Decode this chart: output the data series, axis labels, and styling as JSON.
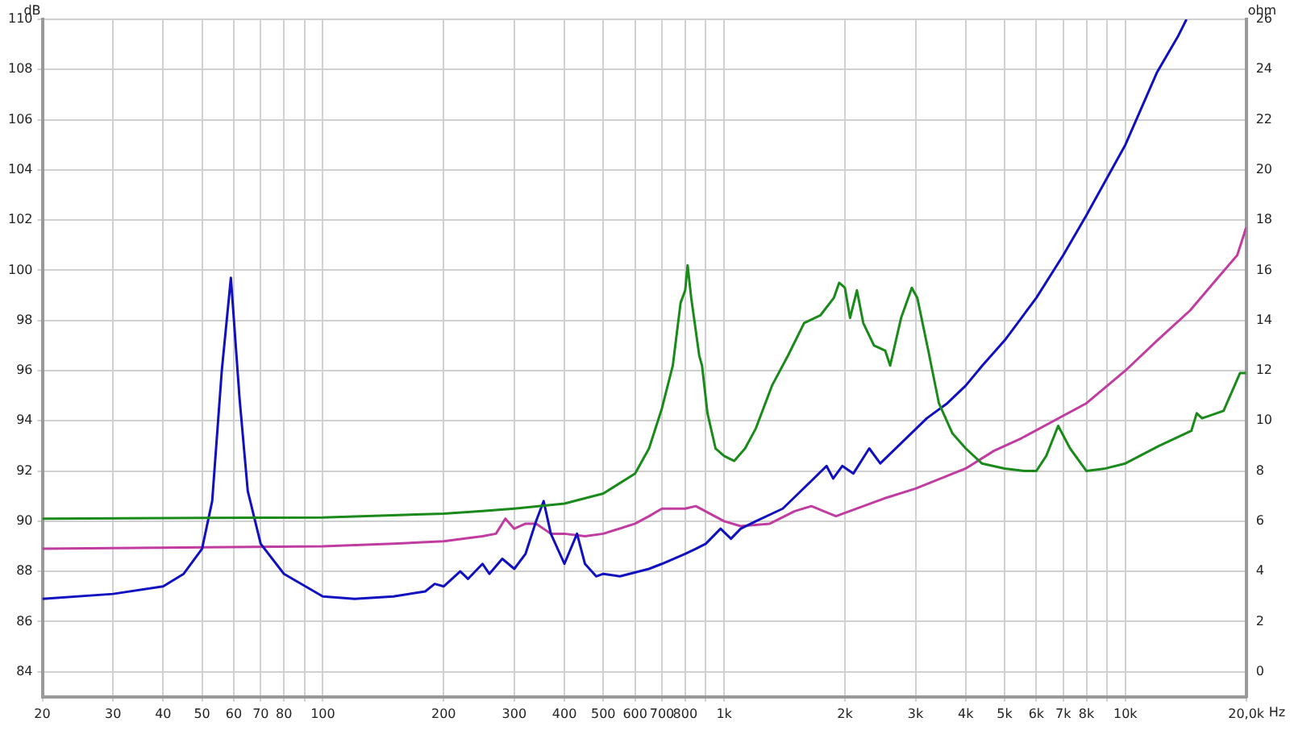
{
  "chart_data": {
    "type": "line",
    "xlabel": "Hz",
    "ylabel": "dB",
    "y2label": "ohm",
    "log": "x",
    "grid": true,
    "marker": "none",
    "line_style": "solid",
    "xlim": [
      20,
      20000
    ],
    "xticks": [
      20,
      30,
      40,
      50,
      60,
      70,
      80,
      {
        "value": 90,
        "label": null
      },
      100,
      200,
      300,
      400,
      500,
      600,
      700,
      800,
      {
        "value": 900,
        "label": null
      },
      {
        "value": 1000,
        "label": "1k"
      },
      {
        "value": 2000,
        "label": "2k"
      },
      {
        "value": 3000,
        "label": "3k"
      },
      {
        "value": 4000,
        "label": "4k"
      },
      {
        "value": 5000,
        "label": "5k"
      },
      {
        "value": 6000,
        "label": "6k"
      },
      {
        "value": 7000,
        "label": "7k"
      },
      {
        "value": 8000,
        "label": "8k"
      },
      {
        "value": 9000,
        "label": null
      },
      {
        "value": 10000,
        "label": "10k"
      },
      {
        "value": 20000,
        "label": "20,0k"
      }
    ],
    "ylim": [
      83,
      110
    ],
    "yticks": [
      84,
      86,
      88,
      90,
      92,
      94,
      96,
      98,
      100,
      102,
      104,
      106,
      108,
      110
    ],
    "y2lim": [
      -1,
      26
    ],
    "y2ticks": [
      0,
      2,
      4,
      6,
      8,
      10,
      12,
      14,
      16,
      18,
      20,
      22,
      24,
      26
    ],
    "series": [
      {
        "color": "#1a8a1a",
        "x": [
          20,
          100,
          200,
          250,
          300,
          400,
          500,
          600,
          650,
          700,
          745,
          779,
          800,
          811,
          828,
          867,
          881,
          909,
          952,
          1000,
          1060,
          1128,
          1200,
          1316,
          1443,
          1583,
          1737,
          1877,
          1935,
          2000,
          2060,
          2143,
          2222,
          2364,
          2520,
          2593,
          2761,
          2936,
          3030,
          3227,
          3430,
          3706,
          4000,
          4389,
          5000,
          5600,
          6000,
          6350,
          6800,
          7280,
          8000,
          8920,
          10000,
          12130,
          14600,
          15060,
          15530,
          17570,
          19300,
          20000
        ],
        "values": [
          90.1,
          90.15,
          90.3,
          90.4,
          90.5,
          90.7,
          91.1,
          91.9,
          92.9,
          94.5,
          96.2,
          98.7,
          99.2,
          100.2,
          98.9,
          96.6,
          96.2,
          94.3,
          92.9,
          92.6,
          92.4,
          92.9,
          93.7,
          95.4,
          96.6,
          97.9,
          98.2,
          98.9,
          99.5,
          99.3,
          98.1,
          99.2,
          97.9,
          97.0,
          96.8,
          96.2,
          98.1,
          99.3,
          98.9,
          96.8,
          94.7,
          93.5,
          92.9,
          92.3,
          92.1,
          92.0,
          92.0,
          92.6,
          93.8,
          92.9,
          92.0,
          92.1,
          92.3,
          93.0,
          93.6,
          94.3,
          94.1,
          94.4,
          95.9,
          95.9
        ]
      },
      {
        "color": "#1010c0",
        "axis": "y2",
        "x": [
          20,
          30,
          40,
          45,
          50,
          53,
          56,
          59,
          62,
          65,
          70,
          80,
          100,
          120,
          150,
          180,
          190,
          200,
          220,
          230,
          250,
          260,
          280,
          300,
          320,
          340,
          355,
          370,
          400,
          430,
          450,
          480,
          500,
          550,
          650,
          700,
          800,
          850,
          900,
          980,
          1040,
          1100,
          1200,
          1400,
          1600,
          1800,
          1870,
          1970,
          2100,
          2300,
          2450,
          2800,
          3200,
          3600,
          4000,
          4400,
          5000,
          6000,
          7000,
          8000,
          10000,
          12000,
          13500,
          14200
        ],
        "values": [
          2.9,
          3.1,
          3.4,
          3.9,
          4.9,
          6.8,
          12.0,
          15.7,
          10.9,
          7.2,
          5.1,
          3.9,
          3.0,
          2.9,
          3.0,
          3.2,
          3.5,
          3.4,
          4.0,
          3.7,
          4.3,
          3.9,
          4.5,
          4.1,
          4.7,
          6.0,
          6.8,
          5.5,
          4.3,
          5.5,
          4.3,
          3.8,
          3.9,
          3.8,
          4.1,
          4.3,
          4.7,
          4.9,
          5.1,
          5.7,
          5.3,
          5.7,
          6.0,
          6.5,
          7.4,
          8.2,
          7.7,
          8.2,
          7.9,
          8.9,
          8.3,
          9.2,
          10.1,
          10.7,
          11.4,
          12.2,
          13.2,
          14.9,
          16.6,
          18.2,
          21.0,
          23.9,
          25.3,
          26.0
        ]
      },
      {
        "color": "#c03ca0",
        "axis": "y2",
        "x": [
          20,
          100,
          150,
          200,
          250,
          270,
          285,
          300,
          320,
          340,
          370,
          400,
          450,
          500,
          600,
          650,
          700,
          800,
          850,
          1000,
          1100,
          1300,
          1500,
          1650,
          1900,
          2500,
          3000,
          4000,
          4700,
          5500,
          7000,
          8000,
          10000,
          12000,
          14500,
          17000,
          19000,
          20000
        ],
        "values": [
          4.9,
          5.0,
          5.1,
          5.2,
          5.4,
          5.5,
          6.1,
          5.7,
          5.9,
          5.9,
          5.5,
          5.5,
          5.4,
          5.5,
          5.9,
          6.2,
          6.5,
          6.5,
          6.6,
          6.0,
          5.8,
          5.9,
          6.4,
          6.6,
          6.2,
          6.9,
          7.3,
          8.1,
          8.8,
          9.3,
          10.2,
          10.7,
          12.0,
          13.2,
          14.4,
          15.7,
          16.6,
          17.7
        ]
      }
    ]
  }
}
